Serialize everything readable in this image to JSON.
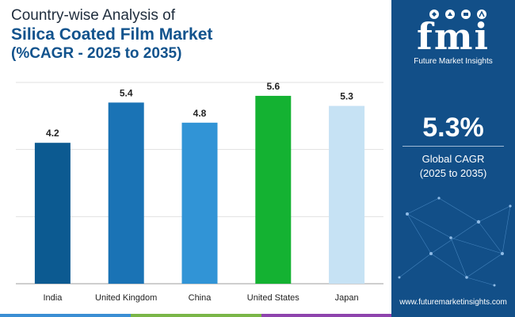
{
  "title": {
    "line1": "Country-wise Analysis of",
    "line2": "Silica Coated Film Market",
    "line3": "(%CAGR - 2025 to 2035)"
  },
  "chart_data": {
    "type": "bar",
    "categories": [
      "India",
      "United Kingdom",
      "China",
      "United States",
      "Japan"
    ],
    "values": [
      4.2,
      5.4,
      4.8,
      5.6,
      5.3
    ],
    "value_labels": [
      "4.2",
      "5.4",
      "4.8",
      "5.6",
      "5.3"
    ],
    "bar_colors": [
      "#0c5a91",
      "#1a73b5",
      "#3194d6",
      "#14b232",
      "#c6e2f4"
    ],
    "ylim": [
      0,
      6
    ],
    "grid": true,
    "title": "Country-wise Analysis of Silica Coated Film Market (%CAGR - 2025 to 2035)",
    "xlabel": "",
    "ylabel": ""
  },
  "sidebar": {
    "logo_text": "fmi",
    "logo_subtitle": "Future Market Insights",
    "cagr_value": "5.3%",
    "cagr_label_line1": "Global CAGR",
    "cagr_label_line2": "(2025 to 2035)",
    "website": "www.futuremarketinsights.com",
    "panel_color": "#124f88"
  },
  "bottom_bar_colors": [
    "#3b8ed3",
    "#7ab648",
    "#8e44ad",
    "#124f88"
  ]
}
